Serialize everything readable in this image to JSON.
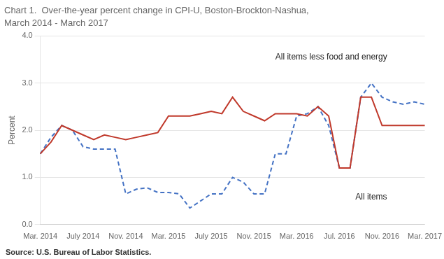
{
  "chart_data": {
    "type": "line",
    "title": "Chart 1.  Over-the-year percent change in CPI-U, Boston-Brockton-Nashua,",
    "subtitle": "March 2014 - March 2017",
    "y_label": "Percent",
    "source": "Source: U.S. Bureau of Labor Statistics.",
    "categories": [
      "Mar. 2014",
      null,
      null,
      null,
      "July 2014",
      null,
      null,
      null,
      "Nov. 2014",
      null,
      null,
      null,
      "Mar. 2015",
      null,
      null,
      null,
      "July 2015",
      null,
      null,
      null,
      "Nov. 2015",
      null,
      null,
      null,
      "Mar. 2016",
      null,
      null,
      null,
      "Jul. 2016",
      null,
      null,
      null,
      "Nov. 2016",
      null,
      null,
      null,
      "Mar. 2017"
    ],
    "series": [
      {
        "color": "#c0392b",
        "line_style": "solid",
        "values": [
          1.5,
          1.75,
          2.1,
          2.0,
          1.9,
          1.8,
          1.9,
          1.85,
          1.8,
          1.85,
          1.9,
          1.95,
          2.3,
          2.3,
          2.3,
          2.35,
          2.4,
          2.35,
          2.7,
          2.4,
          2.3,
          2.2,
          2.35,
          2.35,
          2.35,
          2.3,
          2.5,
          2.3,
          1.2,
          1.2,
          2.7,
          2.7,
          2.1,
          2.1,
          2.1,
          2.1,
          2.1
        ]
      },
      {
        "color": "#4472c4",
        "line_style": "dashed",
        "values": [
          1.5,
          1.85,
          2.1,
          2.0,
          1.65,
          1.6,
          1.6,
          1.6,
          0.65,
          0.75,
          0.78,
          0.68,
          0.68,
          0.65,
          0.35,
          0.5,
          0.65,
          0.65,
          1.0,
          0.9,
          0.65,
          0.65,
          1.5,
          1.5,
          2.3,
          2.35,
          2.5,
          2.1,
          1.2,
          1.2,
          2.7,
          3.0,
          2.7,
          2.6,
          2.55,
          2.6,
          2.55
        ]
      }
    ],
    "annotations": [
      {
        "text": "All items less food and energy",
        "x": 22,
        "y": 3.55
      },
      {
        "text": "All items",
        "x": 29.5,
        "y": 0.58
      }
    ],
    "ylim": [
      0.0,
      4.0
    ],
    "yticks": [
      {
        "value": 0,
        "label": "0.0"
      },
      {
        "value": 1,
        "label": "1.0"
      },
      {
        "value": 2,
        "label": "2.0"
      },
      {
        "value": 3,
        "label": "3.0"
      },
      {
        "value": 4,
        "label": "4.0"
      }
    ],
    "grid": true
  }
}
